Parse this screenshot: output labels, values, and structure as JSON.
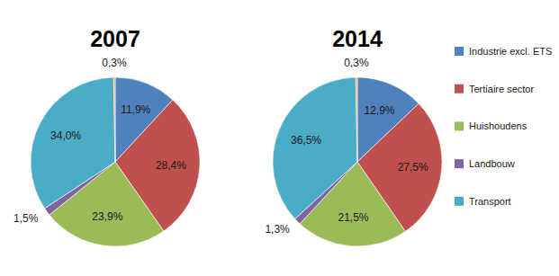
{
  "chart_data": [
    {
      "type": "pie",
      "title": "2007",
      "categories": [
        "Industrie excl. ETS",
        "Tertiaire sector",
        "Huishoudens",
        "Landbouw",
        "Transport",
        null
      ],
      "values": [
        11.9,
        28.4,
        23.9,
        1.5,
        34.0,
        0.3
      ],
      "value_labels": [
        "11,9%",
        "28,4%",
        "23,9%",
        "1,5%",
        "34,0%",
        "0,3%"
      ],
      "colors": [
        "#4f81bd",
        "#c0504d",
        "#9bbb59",
        "#8064a2",
        "#4bacc6",
        "#f79646"
      ],
      "data_labels": true
    },
    {
      "type": "pie",
      "title": "2014",
      "categories": [
        "Industrie excl. ETS",
        "Tertiaire sector",
        "Huishoudens",
        "Landbouw",
        "Transport",
        null
      ],
      "values": [
        12.9,
        27.5,
        21.5,
        1.3,
        36.5,
        0.3
      ],
      "value_labels": [
        "12,9%",
        "27,5%",
        "21,5%",
        "1,3%",
        "36,5%",
        "0,3%"
      ],
      "colors": [
        "#4f81bd",
        "#c0504d",
        "#9bbb59",
        "#8064a2",
        "#4bacc6",
        "#f79646"
      ],
      "data_labels": true,
      "legend": "right"
    }
  ]
}
